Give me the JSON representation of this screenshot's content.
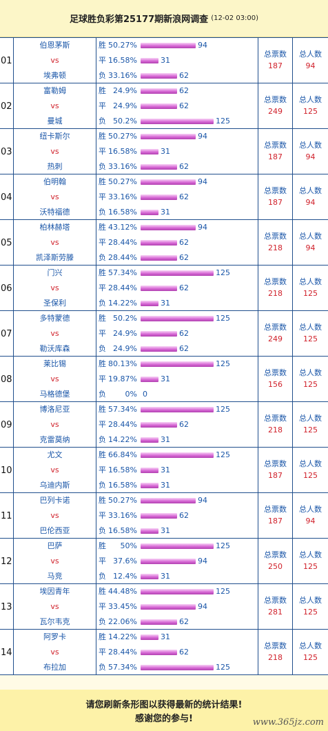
{
  "header": {
    "title": "足球胜负彩第25177期新浪网调查",
    "subtitle": "(12-02 03:00)"
  },
  "labels": {
    "win": "胜",
    "draw": "平",
    "loss": "负",
    "vs": "vs",
    "total_votes": "总票数",
    "total_users": "总人数"
  },
  "chart_data": {
    "type": "bar",
    "matches": [
      {
        "no": "01",
        "home": "伯恩茅斯",
        "away": "埃弗顿",
        "win_pct": "50.27%",
        "win": 94,
        "draw_pct": "16.58%",
        "draw": 31,
        "loss_pct": "33.16%",
        "loss": 62,
        "total_votes": 187,
        "total_users": 94
      },
      {
        "no": "02",
        "home": "富勒姆",
        "away": "曼城",
        "win_pct": "24.9%",
        "win": 62,
        "draw_pct": "24.9%",
        "draw": 62,
        "loss_pct": "50.2%",
        "loss": 125,
        "total_votes": 249,
        "total_users": 125
      },
      {
        "no": "03",
        "home": "纽卡斯尔",
        "away": "热刺",
        "win_pct": "50.27%",
        "win": 94,
        "draw_pct": "16.58%",
        "draw": 31,
        "loss_pct": "33.16%",
        "loss": 62,
        "total_votes": 187,
        "total_users": 94
      },
      {
        "no": "04",
        "home": "伯明翰",
        "away": "沃特福德",
        "win_pct": "50.27%",
        "win": 94,
        "draw_pct": "33.16%",
        "draw": 62,
        "loss_pct": "16.58%",
        "loss": 31,
        "total_votes": 187,
        "total_users": 94
      },
      {
        "no": "05",
        "home": "柏林赫塔",
        "away": "凯泽斯劳滕",
        "win_pct": "43.12%",
        "win": 94,
        "draw_pct": "28.44%",
        "draw": 62,
        "loss_pct": "28.44%",
        "loss": 62,
        "total_votes": 218,
        "total_users": 94
      },
      {
        "no": "06",
        "home": "门兴",
        "away": "圣保利",
        "win_pct": "57.34%",
        "win": 125,
        "draw_pct": "28.44%",
        "draw": 62,
        "loss_pct": "14.22%",
        "loss": 31,
        "total_votes": 218,
        "total_users": 125
      },
      {
        "no": "07",
        "home": "多特蒙德",
        "away": "勒沃库森",
        "win_pct": "50.2%",
        "win": 125,
        "draw_pct": "24.9%",
        "draw": 62,
        "loss_pct": "24.9%",
        "loss": 62,
        "total_votes": 249,
        "total_users": 125
      },
      {
        "no": "08",
        "home": "莱比锡",
        "away": "马格德堡",
        "win_pct": "80.13%",
        "win": 125,
        "draw_pct": "19.87%",
        "draw": 31,
        "loss_pct": "0%",
        "loss": 0,
        "total_votes": 156,
        "total_users": 125
      },
      {
        "no": "09",
        "home": "博洛尼亚",
        "away": "克雷莫纳",
        "win_pct": "57.34%",
        "win": 125,
        "draw_pct": "28.44%",
        "draw": 62,
        "loss_pct": "14.22%",
        "loss": 31,
        "total_votes": 218,
        "total_users": 125
      },
      {
        "no": "10",
        "home": "尤文",
        "away": "乌迪内斯",
        "win_pct": "66.84%",
        "win": 125,
        "draw_pct": "16.58%",
        "draw": 31,
        "loss_pct": "16.58%",
        "loss": 31,
        "total_votes": 187,
        "total_users": 125
      },
      {
        "no": "11",
        "home": "巴列卡诺",
        "away": "巴伦西亚",
        "win_pct": "50.27%",
        "win": 94,
        "draw_pct": "33.16%",
        "draw": 62,
        "loss_pct": "16.58%",
        "loss": 31,
        "total_votes": 187,
        "total_users": 94
      },
      {
        "no": "12",
        "home": "巴萨",
        "away": "马竞",
        "win_pct": "50%",
        "win": 125,
        "draw_pct": "37.6%",
        "draw": 94,
        "loss_pct": "12.4%",
        "loss": 31,
        "total_votes": 250,
        "total_users": 125
      },
      {
        "no": "13",
        "home": "埃因青年",
        "away": "瓦尔韦克",
        "win_pct": "44.48%",
        "win": 125,
        "draw_pct": "33.45%",
        "draw": 94,
        "loss_pct": "22.06%",
        "loss": 62,
        "total_votes": 281,
        "total_users": 125
      },
      {
        "no": "14",
        "home": "阿罗卡",
        "away": "布拉加",
        "win_pct": "14.22%",
        "win": 31,
        "draw_pct": "28.44%",
        "draw": 62,
        "loss_pct": "57.34%",
        "loss": 125,
        "total_votes": 218,
        "total_users": 125
      }
    ]
  },
  "footer": {
    "line1": "请您刷新条形图以获得最新的统计结果!",
    "line2": "感谢您的参与!",
    "watermark": "www.365jz.com"
  },
  "colors": {
    "team": "#1a56a8",
    "vs": "#d0202a",
    "bar": "#d86ad6",
    "border": "#1f4e8c"
  }
}
